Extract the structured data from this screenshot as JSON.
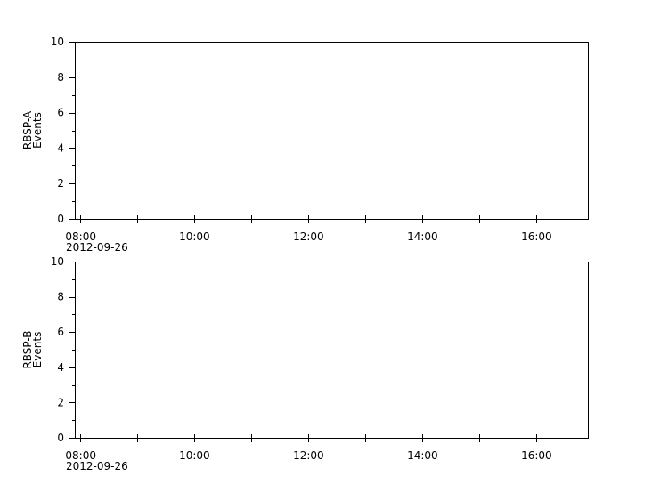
{
  "chart_data": [
    {
      "type": "line",
      "ylabel": [
        "RBSP-A",
        "Events"
      ],
      "ylim": [
        0,
        10
      ],
      "yticks": [
        "0",
        "2",
        "4",
        "6",
        "8",
        "10"
      ],
      "xlim_hours": [
        7.9,
        16.9
      ],
      "xticks": [
        "08:00",
        "10:00",
        "12:00",
        "14:00",
        "16:00"
      ],
      "xdate": "2012-09-26",
      "series": [],
      "grid": false
    },
    {
      "type": "line",
      "ylabel": [
        "RBSP-B",
        "Events"
      ],
      "ylim": [
        0,
        10
      ],
      "yticks": [
        "0",
        "2",
        "4",
        "6",
        "8",
        "10"
      ],
      "xlim_hours": [
        7.9,
        16.9
      ],
      "xticks": [
        "08:00",
        "10:00",
        "12:00",
        "14:00",
        "16:00"
      ],
      "xdate": "2012-09-26",
      "series": [],
      "grid": false
    }
  ]
}
